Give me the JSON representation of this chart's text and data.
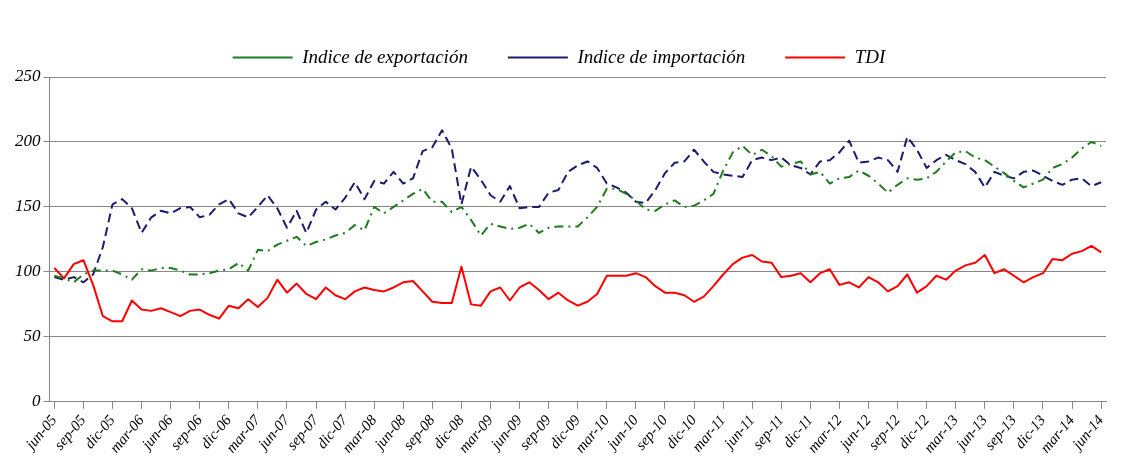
{
  "chart_data": {
    "type": "line",
    "categories": [
      "jun-05",
      null,
      null,
      "sep-05",
      null,
      null,
      "dic-05",
      null,
      null,
      "mar-06",
      null,
      null,
      "jun-06",
      null,
      null,
      "sep-06",
      null,
      null,
      "dic-06",
      null,
      null,
      "mar-07",
      null,
      null,
      "jun-07",
      null,
      null,
      "sep-07",
      null,
      null,
      "dic-07",
      null,
      null,
      "mar-08",
      null,
      null,
      "jun-08",
      null,
      null,
      "sep-08",
      null,
      null,
      "dic-08",
      null,
      null,
      "mar-09",
      null,
      null,
      "jun-09",
      null,
      null,
      "sep-09",
      null,
      null,
      "dic-09",
      null,
      null,
      "mar-10",
      null,
      null,
      "jun-10",
      null,
      null,
      "sep-10",
      null,
      null,
      "dic-10",
      null,
      null,
      "mar-11",
      null,
      null,
      "jun-11",
      null,
      null,
      "sep-11",
      null,
      null,
      "dic-11",
      null,
      null,
      "mar-12",
      null,
      null,
      "jun-12",
      null,
      null,
      "sep-12",
      null,
      null,
      "dic-12",
      null,
      null,
      "mar-13",
      null,
      null,
      "jun-13",
      null,
      null,
      "sep-13",
      null,
      null,
      "dic-13",
      null,
      null,
      "mar-14",
      null,
      null,
      "jun-14"
    ],
    "series": [
      {
        "name": "Indice de exportación",
        "color": "#1e7b1e",
        "line_style": "dashdot",
        "values": [
          97,
          95,
          92,
          98,
          101,
          101,
          101,
          98,
          94,
          102,
          101,
          103,
          103,
          101,
          98,
          98,
          99,
          101,
          102,
          107,
          101,
          117,
          116,
          121,
          124,
          127,
          120,
          123,
          125,
          128,
          130,
          136,
          132,
          150,
          145,
          150,
          155,
          160,
          164,
          154,
          154,
          146,
          150,
          140,
          128,
          137,
          135,
          133,
          134,
          137,
          130,
          134,
          135,
          135,
          135,
          142,
          150,
          164,
          164,
          160,
          155,
          148,
          147,
          152,
          155,
          150,
          151,
          155,
          160,
          178,
          192,
          197,
          190,
          194,
          189,
          181,
          183,
          185,
          175,
          177,
          168,
          172,
          173,
          178,
          174,
          168,
          161,
          167,
          172,
          171,
          172,
          177,
          185,
          192,
          193,
          188,
          186,
          181,
          176,
          170,
          165,
          168,
          171,
          180,
          183,
          188,
          195,
          200,
          197
        ]
      },
      {
        "name": "Indice de importación",
        "color": "#1c1c6e",
        "line_style": "dashed",
        "values": [
          96,
          94,
          96,
          92,
          98,
          119,
          152,
          156,
          149,
          130,
          142,
          147,
          145,
          149,
          150,
          142,
          144,
          152,
          156,
          145,
          142,
          150,
          159,
          149,
          134,
          147,
          130,
          148,
          154,
          148,
          157,
          169,
          156,
          170,
          168,
          177,
          168,
          172,
          193,
          196,
          209,
          195,
          152,
          181,
          171,
          159,
          154,
          166,
          149,
          150,
          150,
          161,
          163,
          177,
          182,
          185,
          180,
          168,
          165,
          161,
          154,
          153,
          163,
          176,
          184,
          185,
          194,
          185,
          177,
          175,
          174,
          173,
          186,
          188,
          186,
          188,
          182,
          180,
          175,
          185,
          186,
          192,
          201,
          184,
          185,
          188,
          186,
          177,
          204,
          194,
          180,
          186,
          190,
          186,
          183,
          177,
          165,
          177,
          174,
          172,
          177,
          178,
          174,
          170,
          167,
          171,
          172,
          166,
          169
        ]
      },
      {
        "name": "TDI",
        "color": "#ff0000",
        "line_style": "solid",
        "values": [
          103,
          95,
          106,
          109,
          90,
          66,
          62,
          62,
          78,
          71,
          70,
          72,
          69,
          66,
          70,
          71,
          67,
          64,
          74,
          72,
          79,
          73,
          80,
          94,
          84,
          91,
          83,
          79,
          88,
          82,
          79,
          85,
          88,
          86,
          85,
          88,
          92,
          93,
          85,
          77,
          76,
          76,
          104,
          75,
          74,
          85,
          88,
          78,
          88,
          92,
          86,
          79,
          84,
          78,
          74,
          77,
          83,
          97,
          97,
          97,
          99,
          96,
          89,
          84,
          84,
          82,
          77,
          81,
          89,
          98,
          106,
          111,
          113,
          108,
          107,
          96,
          97,
          99,
          92,
          99,
          102,
          90,
          92,
          88,
          96,
          92,
          85,
          89,
          98,
          84,
          89,
          97,
          94,
          101,
          105,
          107,
          113,
          99,
          102,
          97,
          92,
          96,
          99,
          110,
          109,
          114,
          116,
          120,
          115
        ]
      }
    ],
    "ylim": [
      0,
      250
    ],
    "yticks": [
      0,
      50,
      100,
      150,
      200,
      250
    ],
    "grid": "y",
    "legend": "top",
    "marker": "none"
  }
}
